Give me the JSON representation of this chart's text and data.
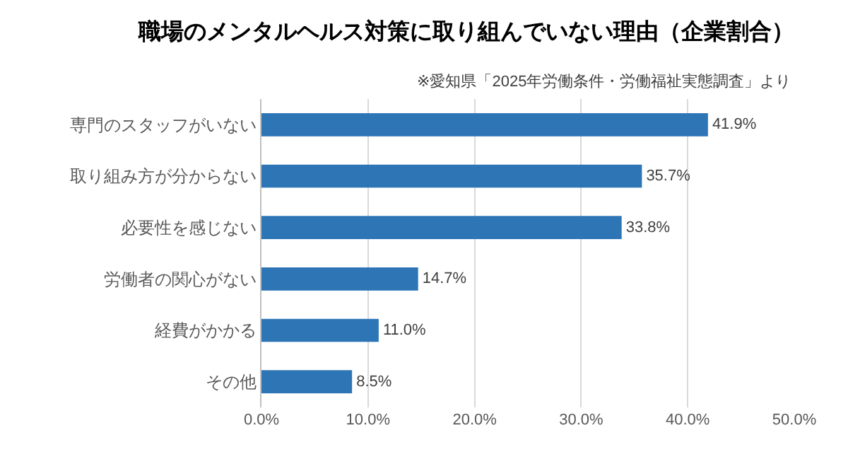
{
  "chart_data": {
    "type": "bar",
    "orientation": "horizontal",
    "title": "職場のメンタルヘルス対策に取り組んでいない理由（企業割合）",
    "subtitle": "※愛知県「2025年労働条件・労働福祉実態調査」より",
    "categories": [
      "専門のスタッフがいない",
      "取り組み方が分からない",
      "必要性を感じない",
      "労働者の関心がない",
      "経費がかかる",
      "その他"
    ],
    "values": [
      41.9,
      35.7,
      33.8,
      14.7,
      11.0,
      8.5
    ],
    "value_labels": [
      "41.9%",
      "35.7%",
      "33.8%",
      "14.7%",
      "11.0%",
      "8.5%"
    ],
    "color": "#2e75b6",
    "xlim": [
      0,
      50
    ],
    "xticks": [
      {
        "value": 0,
        "label": "0.0%"
      },
      {
        "value": 10,
        "label": "10.0%"
      },
      {
        "value": 20,
        "label": "20.0%"
      },
      {
        "value": 30,
        "label": "30.0%"
      },
      {
        "value": 40,
        "label": "40.0%"
      },
      {
        "value": 50,
        "label": "50.0%"
      }
    ],
    "grid": "x"
  }
}
